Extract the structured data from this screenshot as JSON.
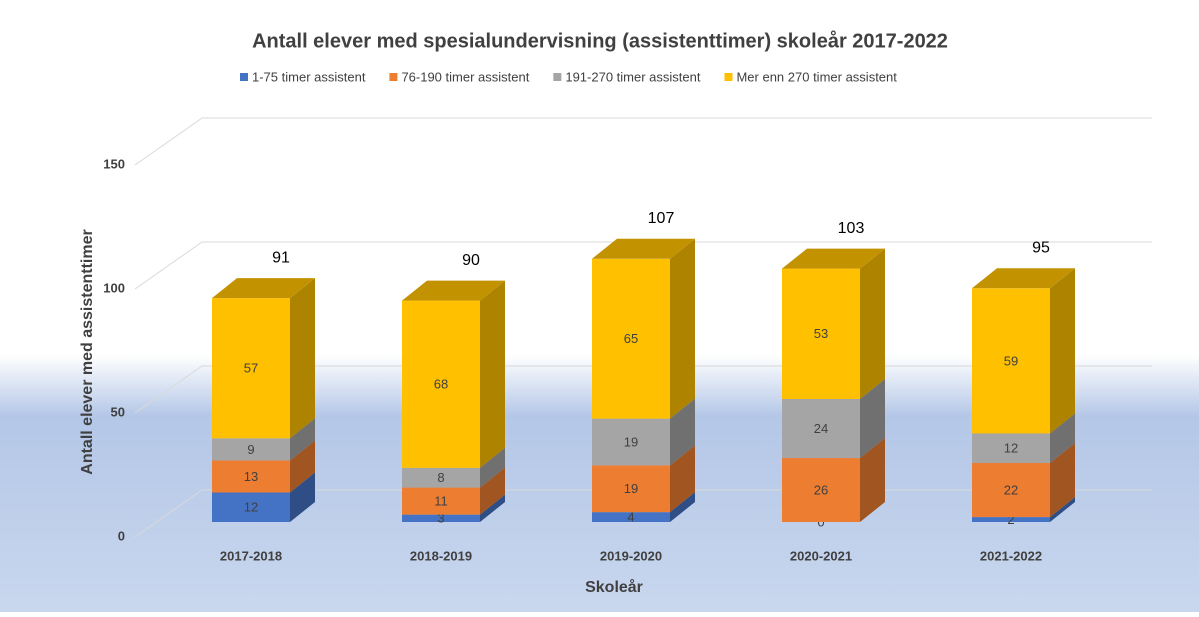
{
  "chart_data": {
    "type": "bar3d_stacked",
    "title": "Antall elever med spesialundervisning (assistenttimer) skoleår 2017-2022",
    "x_label": "Skoleår",
    "y_label": "Antall elever med assistenttimer",
    "categories": [
      "2017-2018",
      "2018-2019",
      "2019-2020",
      "2020-2021",
      "2021-2022"
    ],
    "series": [
      {
        "name": "1-75 timer assistent",
        "color": "#4472c4",
        "values": [
          12,
          3,
          4,
          0,
          2
        ]
      },
      {
        "name": "76-190 timer assistent",
        "color": "#ed7d31",
        "values": [
          13,
          11,
          19,
          26,
          22
        ]
      },
      {
        "name": "191-270 timer assistent",
        "color": "#a5a5a5",
        "values": [
          9,
          8,
          19,
          24,
          12
        ]
      },
      {
        "name": "Mer enn 270 timer assistent",
        "color": "#ffc000",
        "values": [
          57,
          68,
          65,
          53,
          59
        ]
      }
    ],
    "total_labels": [
      91,
      90,
      107,
      103,
      95
    ],
    "ylim": [
      0,
      150
    ],
    "yticks": [
      0,
      50,
      100,
      150
    ],
    "grid": true,
    "legend": "top"
  }
}
